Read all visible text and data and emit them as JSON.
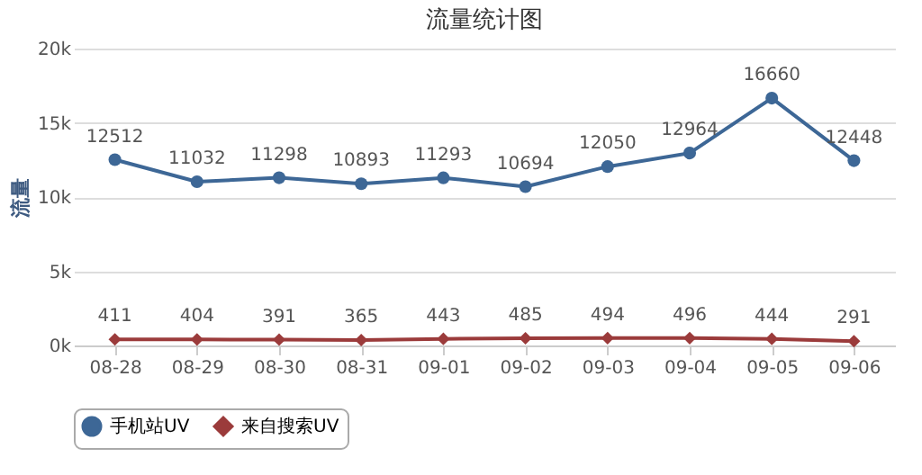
{
  "chart_data": {
    "type": "line",
    "title": "流量统计图",
    "ylabel": "流量",
    "categories": [
      "08-28",
      "08-29",
      "08-30",
      "08-31",
      "09-01",
      "09-02",
      "09-03",
      "09-04",
      "09-05",
      "09-06"
    ],
    "series": [
      {
        "name": "手机站UV",
        "color": "#3d6796",
        "marker": "circle",
        "values": [
          12512,
          11032,
          11298,
          10893,
          11293,
          10694,
          12050,
          12964,
          16660,
          12448
        ]
      },
      {
        "name": "来自搜索UV",
        "color": "#9b3b3b",
        "marker": "diamond",
        "values": [
          411,
          404,
          391,
          365,
          443,
          485,
          494,
          496,
          444,
          291
        ]
      }
    ],
    "ylim": [
      0,
      20000
    ],
    "yticks": [
      {
        "value": 0,
        "label": "0k"
      },
      {
        "value": 5000,
        "label": "5k"
      },
      {
        "value": 10000,
        "label": "10k"
      },
      {
        "value": 15000,
        "label": "15k"
      },
      {
        "value": 20000,
        "label": "20k"
      }
    ],
    "grid": "y",
    "legend": "bottom",
    "data_labels": true,
    "line_style": "solid"
  }
}
